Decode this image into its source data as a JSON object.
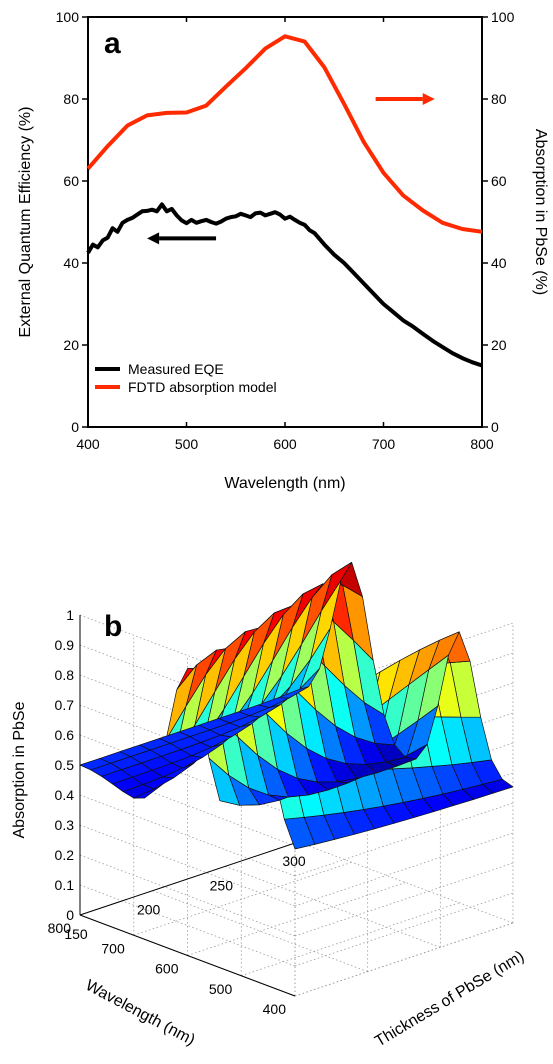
{
  "chart_data": [
    {
      "panel_label": "a",
      "type": "line",
      "xlabel": "Wavelength (nm)",
      "ylabel": "External Quantum Efficiency (%)",
      "y2label": "Absorption in PbSe (%)",
      "xlim": [
        400,
        800
      ],
      "ylim": [
        0,
        100
      ],
      "y2lim": [
        0,
        100
      ],
      "xticks": [
        "400",
        "500",
        "600",
        "700",
        "800"
      ],
      "yticks": [
        "0",
        "20",
        "40",
        "60",
        "80",
        "100"
      ],
      "y2ticks": [
        "0",
        "20",
        "40",
        "60",
        "80",
        "100"
      ],
      "legend_position": "bottom-left",
      "series": [
        {
          "name": "Measured EQE",
          "color": "#000000",
          "axis": "left",
          "x": [
            400,
            405,
            410,
            415,
            420,
            425,
            430,
            435,
            440,
            445,
            450,
            455,
            460,
            465,
            470,
            475,
            480,
            485,
            490,
            495,
            500,
            505,
            510,
            515,
            520,
            525,
            530,
            535,
            540,
            545,
            550,
            555,
            560,
            565,
            570,
            575,
            580,
            585,
            590,
            595,
            600,
            605,
            610,
            615,
            620,
            625,
            630,
            640,
            650,
            660,
            670,
            680,
            690,
            700,
            710,
            720,
            730,
            740,
            750,
            760,
            770,
            780,
            790,
            800
          ],
          "y": [
            42.5,
            44.5,
            43.8,
            45.5,
            46.2,
            48.5,
            47.6,
            49.8,
            50.5,
            51.0,
            51.8,
            52.6,
            52.7,
            53.0,
            52.6,
            54.3,
            52.6,
            53.2,
            51.6,
            50.4,
            49.7,
            50.5,
            49.8,
            50.2,
            50.5,
            50.0,
            49.6,
            50.1,
            50.8,
            51.2,
            51.4,
            52.0,
            51.6,
            51.2,
            52.1,
            52.3,
            51.6,
            52.0,
            52.4,
            51.8,
            50.8,
            51.3,
            50.5,
            49.8,
            49.3,
            48.0,
            47.3,
            44.5,
            42.0,
            40.0,
            37.5,
            35.0,
            32.5,
            30.0,
            28.0,
            26.0,
            24.5,
            22.7,
            21.0,
            19.5,
            18.0,
            16.8,
            15.8,
            15.0
          ]
        },
        {
          "name": "FDTD absorption model",
          "color": "#ff2a00",
          "axis": "right",
          "x": [
            400,
            420,
            440,
            460,
            480,
            500,
            520,
            540,
            560,
            580,
            600,
            620,
            640,
            660,
            680,
            700,
            720,
            740,
            760,
            780,
            800
          ],
          "y": [
            63,
            68.5,
            73.5,
            76,
            76.6,
            76.7,
            78.4,
            83,
            87.5,
            92.3,
            95.3,
            94,
            87.7,
            78.8,
            69.5,
            62,
            56.5,
            52.8,
            49.8,
            48.3,
            47.6
          ]
        }
      ],
      "annotations": [
        {
          "type": "arrow",
          "direction": "left",
          "color": "#000000",
          "points_to": "left axis",
          "x_from": 530,
          "x_to": 460,
          "y": 46
        },
        {
          "type": "arrow",
          "direction": "right",
          "color": "#ff2a00",
          "points_to": "right axis",
          "x_from": 692,
          "x_to": 752,
          "y": 80
        }
      ]
    },
    {
      "panel_label": "b",
      "type": "surface",
      "xlabel": "Wavelength (nm)",
      "ylabel": "Thickness of PbSe (nm)",
      "zlabel": "Absorption in PbSe",
      "xlim": [
        400,
        800
      ],
      "ylim": [
        150,
        300
      ],
      "zlim": [
        0,
        1
      ],
      "xticks": [
        "400",
        "500",
        "600",
        "700",
        "800"
      ],
      "yticks": [
        "150",
        "200",
        "250",
        "300"
      ],
      "zticks": [
        "0",
        "0.1",
        "0.2",
        "0.3",
        "0.4",
        "0.5",
        "0.6",
        "0.7",
        "0.8",
        "0.9",
        "1"
      ],
      "grid": true,
      "colormap": "jet",
      "colormap_range": [
        0.4,
        1.0
      ],
      "grid_resolution": {
        "wavelength_steps": 20,
        "thickness_steps": 11
      },
      "peak_absorption": [
        {
          "thickness": 150,
          "wavelength": 600,
          "absorption": 0.95
        },
        {
          "thickness": 150,
          "wavelength": 470,
          "absorption": 0.76
        },
        {
          "thickness": 300,
          "wavelength": 700,
          "absorption": 0.96
        },
        {
          "thickness": 300,
          "wavelength": 500,
          "absorption": 0.93
        }
      ],
      "edge_values": {
        "wavelength_800_thickness_150": 0.48,
        "wavelength_800_thickness_300": 0.56,
        "wavelength_400_thickness_300": 0.5,
        "wavelength_400_thickness_150": 0.63,
        "minimum": {
          "thickness": 300,
          "wavelength": 600,
          "absorption": 0.43
        }
      }
    }
  ]
}
